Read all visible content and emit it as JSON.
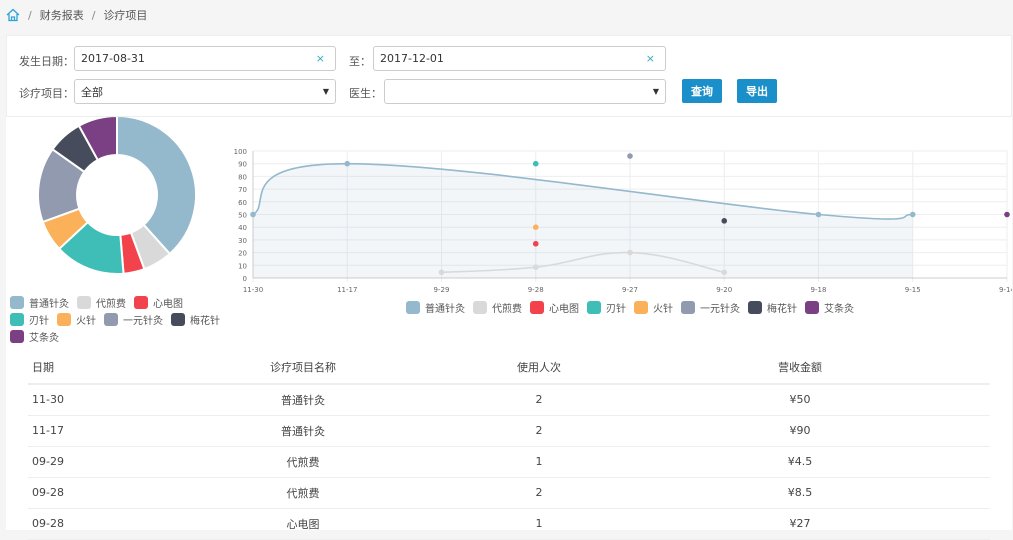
{
  "breadcrumb": {
    "items": [
      "财务报表",
      "诊疗项目"
    ],
    "separator": "/"
  },
  "filters": {
    "date_from_label": "发生日期：",
    "date_from": "2017-08-31",
    "date_to_label": "至：",
    "date_to": "2017-12-01",
    "item_label": "诊疗项目：",
    "item_value": "全部",
    "doctor_label": "医生：",
    "doctor_value": "",
    "clear_glyph": "×",
    "dropdown_glyph": "▼",
    "query_label": "查询",
    "export_label": "导出"
  },
  "colors": {
    "accent": "#1a8fc9"
  },
  "legend": [
    {
      "name": "普通针灸",
      "color": "#94b8cc"
    },
    {
      "name": "代煎费",
      "color": "#d9d9d9"
    },
    {
      "name": "心电图",
      "color": "#f2434c"
    },
    {
      "name": "刃针",
      "color": "#3fbdb7"
    },
    {
      "name": "火针",
      "color": "#fbb05a"
    },
    {
      "name": "一元针灸",
      "color": "#919aaf"
    },
    {
      "name": "梅花针",
      "color": "#464c5b"
    },
    {
      "name": "艾条灸",
      "color": "#7b3f84"
    }
  ],
  "chart_data": [
    {
      "type": "pie",
      "variant": "doughnut",
      "categories": [
        "普通针灸",
        "代煎费",
        "心电图",
        "刃针",
        "火针",
        "一元针灸",
        "梅花针",
        "艾条灸"
      ],
      "values": [
        240,
        37.5,
        27,
        90,
        40,
        96,
        45,
        50
      ],
      "legend": "bottom"
    },
    {
      "type": "line",
      "categories": [
        "11-30",
        "11-17",
        "9-29",
        "9-28",
        "9-27",
        "9-20",
        "9-18",
        "9-15",
        "9-14"
      ],
      "ylim": [
        0,
        100
      ],
      "yticks": [
        0,
        10,
        20,
        30,
        40,
        50,
        60,
        70,
        80,
        90,
        100
      ],
      "grid": true,
      "legend": "bottom",
      "series": [
        {
          "name": "普通针灸",
          "values": [
            50,
            90,
            null,
            null,
            null,
            null,
            50,
            50,
            null
          ],
          "fill": true
        },
        {
          "name": "代煎费",
          "values": [
            null,
            null,
            4.5,
            8.5,
            20,
            4.5,
            null,
            null,
            null
          ]
        },
        {
          "name": "心电图",
          "values": [
            null,
            null,
            null,
            27,
            null,
            null,
            null,
            null,
            null
          ]
        },
        {
          "name": "刃针",
          "values": [
            null,
            null,
            null,
            90,
            null,
            null,
            null,
            null,
            null
          ]
        },
        {
          "name": "火针",
          "values": [
            null,
            null,
            null,
            40,
            null,
            null,
            null,
            null,
            null
          ]
        },
        {
          "name": "一元针灸",
          "values": [
            null,
            null,
            null,
            null,
            96,
            null,
            null,
            null,
            null
          ]
        },
        {
          "name": "梅花针",
          "values": [
            null,
            null,
            null,
            null,
            null,
            45,
            null,
            null,
            null
          ]
        },
        {
          "name": "艾条灸",
          "values": [
            null,
            null,
            null,
            null,
            null,
            null,
            null,
            null,
            50
          ]
        }
      ]
    }
  ],
  "table": {
    "headers": [
      "日期",
      "诊疗项目名称",
      "使用人次",
      "营收金额"
    ],
    "rows": [
      [
        "11-30",
        "普通针灸",
        "2",
        "¥50"
      ],
      [
        "11-17",
        "普通针灸",
        "2",
        "¥90"
      ],
      [
        "09-29",
        "代煎费",
        "1",
        "¥4.5"
      ],
      [
        "09-28",
        "代煎费",
        "2",
        "¥8.5"
      ],
      [
        "09-28",
        "心电图",
        "1",
        "¥27"
      ]
    ]
  }
}
